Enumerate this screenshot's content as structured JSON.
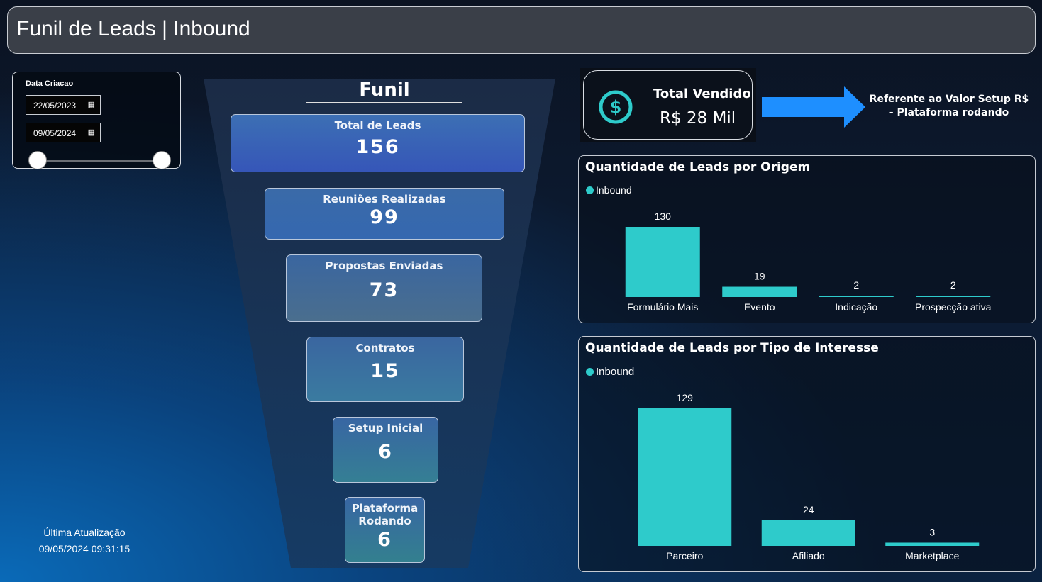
{
  "header": {
    "title": "Funil de Leads | Inbound"
  },
  "date_slicer": {
    "label": "Data Criacao",
    "start_date": "22/05/2023",
    "end_date": "09/05/2024",
    "calendar_icon": "calendar-icon",
    "range_selected_fraction": [
      0.0,
      1.0
    ]
  },
  "last_update": {
    "label": "Última Atualização",
    "value": "09/05/2024 09:31:15"
  },
  "funnel": {
    "title": "Funil",
    "stages": [
      {
        "name": "Total de Leads",
        "value": "156"
      },
      {
        "name": "Reuniões Realizadas",
        "value": "99"
      },
      {
        "name": "Propostas Enviadas",
        "value": "73"
      },
      {
        "name": "Contratos",
        "value": "15"
      },
      {
        "name": "Setup Inicial",
        "value": "6"
      },
      {
        "name": "Plataforma Rodando",
        "value": "6"
      }
    ]
  },
  "kpi": {
    "title": "Total Vendido",
    "value": "R$ 28 Mil",
    "icon": "dollar-circle-icon",
    "icon_color": "#2ecbcb"
  },
  "annotation": {
    "arrow_icon": "arrow-right-icon",
    "arrow_color": "#1e8fff",
    "text": "Referente ao Valor Setup R$ - Plataforma rodando"
  },
  "colors": {
    "bar": "#2ecbcb"
  },
  "chart_data": [
    {
      "type": "bar",
      "title": "Quantidade de Leads por Origem",
      "legend": [
        "Inbound"
      ],
      "categories": [
        "Formulário Mais",
        "Evento",
        "Indicação",
        "Prospecção ativa"
      ],
      "series": [
        {
          "name": "Inbound",
          "values": [
            130,
            19,
            2,
            2
          ]
        }
      ],
      "labels": [
        "130",
        "19",
        "2",
        "2"
      ],
      "ylim": [
        0,
        130
      ]
    },
    {
      "type": "bar",
      "title": "Quantidade de Leads por Tipo de Interesse",
      "legend": [
        "Inbound"
      ],
      "categories": [
        "Parceiro",
        "Afiliado",
        "Marketplace"
      ],
      "series": [
        {
          "name": "Inbound",
          "values": [
            129,
            24,
            3
          ]
        }
      ],
      "labels": [
        "129",
        "24",
        "3"
      ],
      "ylim": [
        0,
        129
      ]
    }
  ]
}
